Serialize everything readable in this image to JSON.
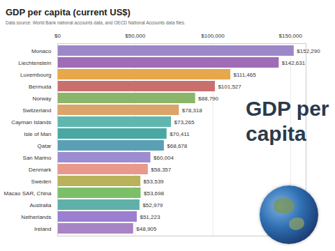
{
  "chart_data": {
    "type": "bar",
    "orientation": "horizontal",
    "title": "GDP per capita (current US$)",
    "subtitle": "Data source: World Bank national accounts data, and OECD National Accounts data files.",
    "annotations": [
      "GDP per capita"
    ],
    "categories": [
      "Monaco",
      "Liechtenstein",
      "Luxembourg",
      "Bermuda",
      "Norway",
      "Switzerland",
      "Cayman Islands",
      "Isle of Man",
      "Qatar",
      "San Marino",
      "Denmark",
      "Sweden",
      "Macao SAR, China",
      "Australia",
      "Netherlands",
      "Ireland"
    ],
    "values": [
      152290,
      142631,
      111465,
      101527,
      88790,
      78318,
      73265,
      70411,
      68678,
      60004,
      58357,
      53539,
      53698,
      52979,
      51223,
      48905
    ],
    "value_labels": [
      "$152,290",
      "$142,631",
      "$111,465",
      "$101,527",
      "$88,790",
      "$78,318",
      "$73,265",
      "$70,411",
      "$68,678",
      "$60,004",
      "$58,357",
      "$53,539",
      "$53,698",
      "$52,979",
      "$51,223",
      "$48,905"
    ],
    "data_labels": true,
    "colors": [
      "#9c88c9",
      "#a06cb6",
      "#e6a84b",
      "#c9706f",
      "#8bb56a",
      "#dba46a",
      "#5fb7b0",
      "#4aa8a3",
      "#5b9fb5",
      "#9d8cd0",
      "#e89a8a",
      "#b8b35a",
      "#7cbf6a",
      "#5fb0a8",
      "#9b7fd0",
      "#a884c4"
    ],
    "xlim": [
      0,
      160000
    ],
    "xticks": [
      {
        "value": 0,
        "label": "$0"
      },
      {
        "value": 50000,
        "label": "$50,000"
      },
      {
        "value": 100000,
        "label": "$100,000"
      },
      {
        "value": 150000,
        "label": "$150,000"
      }
    ],
    "grid": true
  }
}
